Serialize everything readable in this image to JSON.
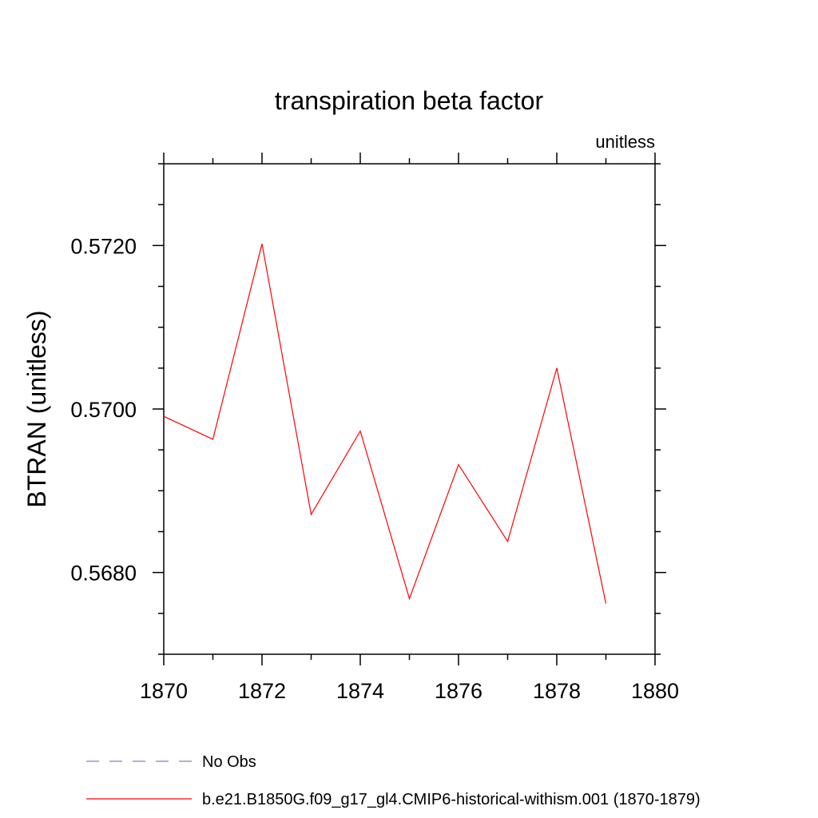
{
  "chart_data": {
    "type": "line",
    "title": "transpiration beta factor",
    "units_label": "unitless",
    "ylabel": "BTRAN  (unitless)",
    "xlabel": "",
    "xlim": [
      1870,
      1880
    ],
    "ylim": [
      0.567,
      0.573
    ],
    "x_ticks": [
      "1870",
      "1872",
      "1874",
      "1876",
      "1878",
      "1880"
    ],
    "y_ticks": [
      "0.5680",
      "0.5700",
      "0.5720"
    ],
    "grid": false,
    "series": [
      {
        "name": "b.e21.B1850G.f09_g17_gl4.CMIP6-historical-withism.001 (1870-1879)",
        "color": "#ff0000",
        "x": [
          1870,
          1871,
          1872,
          1873,
          1874,
          1875,
          1876,
          1877,
          1878,
          1879
        ],
        "y": [
          0.56991,
          0.56963,
          0.57202,
          0.56871,
          0.56973,
          0.56768,
          0.56932,
          0.56838,
          0.5705,
          0.56762
        ]
      }
    ],
    "legend": {
      "placement": "bottom",
      "entries": [
        {
          "label": "No Obs",
          "color": "#8080c0",
          "style": "dashed"
        },
        {
          "label": "b.e21.B1850G.f09_g17_gl4.CMIP6-historical-withism.001 (1870-1879)",
          "color": "#ff0000",
          "style": "solid"
        }
      ]
    }
  }
}
